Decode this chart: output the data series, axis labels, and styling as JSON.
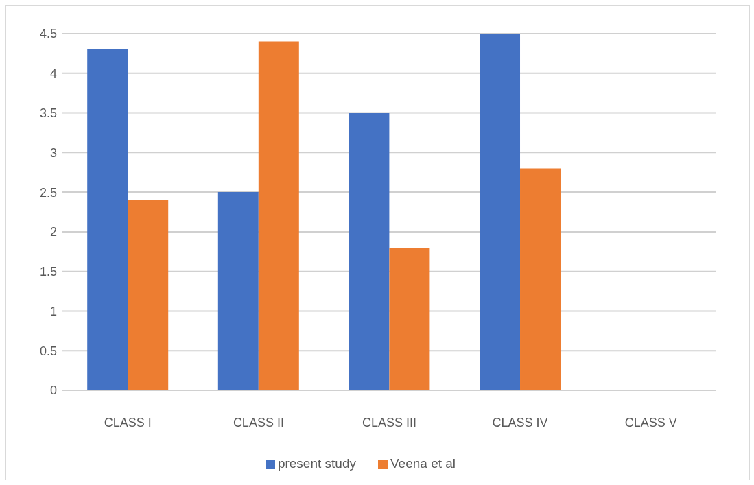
{
  "chart_data": {
    "type": "bar",
    "categories": [
      "CLASS I",
      "CLASS II",
      "CLASS III",
      "CLASS IV",
      "CLASS V"
    ],
    "series": [
      {
        "name": "present study",
        "color": "#4472c4",
        "values": [
          4.3,
          2.5,
          3.5,
          4.5,
          null
        ]
      },
      {
        "name": "Veena et al",
        "color": "#ed7d31",
        "values": [
          2.4,
          4.4,
          1.8,
          2.8,
          null
        ]
      }
    ],
    "ylim": [
      0,
      4.5
    ],
    "yticks": [
      0,
      0.5,
      1,
      1.5,
      2,
      2.5,
      3,
      3.5,
      4,
      4.5
    ],
    "grid": "y",
    "legend": "bottom"
  }
}
